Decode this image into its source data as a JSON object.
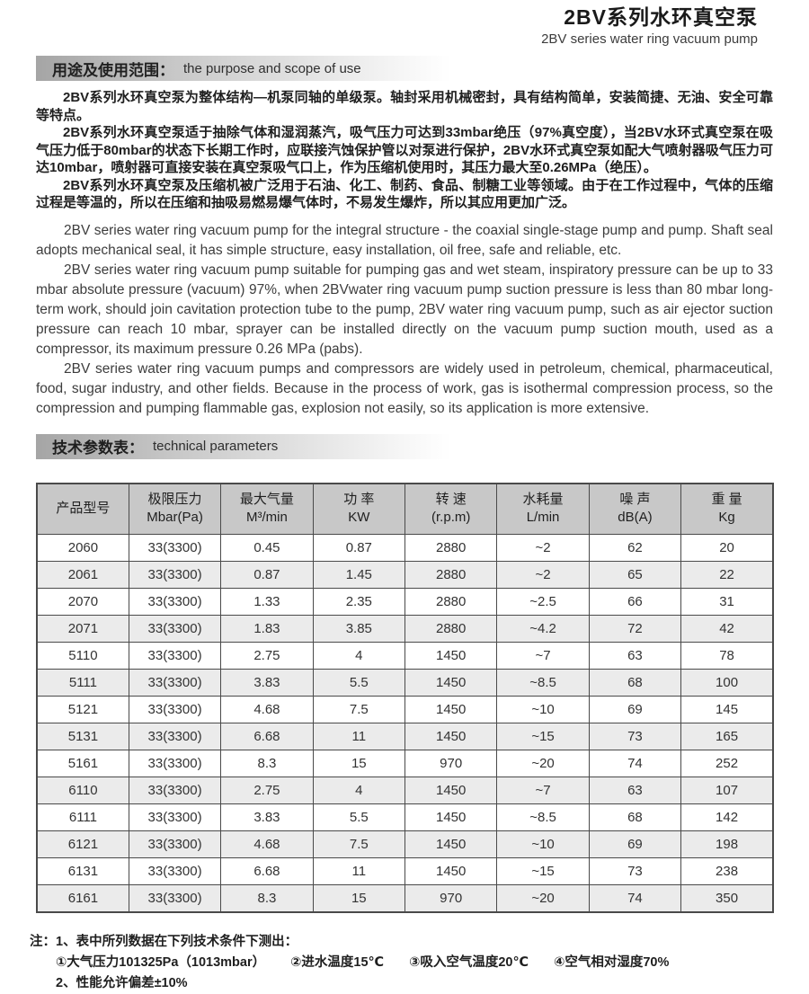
{
  "doc_header": {
    "title_zh": "2BV系列水环真空泵",
    "title_en": "2BV series water ring vacuum pump"
  },
  "section_purpose": {
    "title_zh": "用途及使用范围：",
    "title_en": "the purpose and scope of use",
    "paragraphs_zh": [
      "2BV系列水环真空泵为整体结构—机泵同轴的单级泵。轴封采用机械密封，具有结构简单，安装简捷、无油、安全可靠等特点。",
      "2BV系列水环真空泵适于抽除气体和湿润蒸汽，吸气压力可达到33mbar绝压（97%真空度），当2BV水环式真空泵在吸气压力低于80mbar的状态下长期工作时，应联接汽蚀保护管以对泵进行保护，2BV水环式真空泵如配大气喷射器吸气压力可达10mbar，喷射器可直接安装在真空泵吸气口上，作为压缩机使用时，其压力最大至0.26MPa（绝压）。",
      "2BV系列水环真空泵及压缩机被广泛用于石油、化工、制药、食品、制糖工业等领域。由于在工作过程中，气体的压缩过程是等温的，所以在压缩和抽吸易燃易爆气体时，不易发生爆炸，所以其应用更加广泛。"
    ],
    "paragraphs_en": [
      "2BV series water ring vacuum pump for the integral structure - the coaxial single-stage pump and pump. Shaft seal adopts mechanical seal, it has simple structure, easy installation, oil free, safe and reliable, etc.",
      "2BV series water ring vacuum pump suitable for pumping gas and wet steam, inspiratory pressure can be up to 33 mbar absolute pressure (vacuum) 97%, when 2BVwater ring vacuum pump suction pressure is less than 80 mbar long-term work, should join cavitation protection tube to the pump, 2BV water ring vacuum pump, such as air ejector suction pressure can reach 10 mbar, sprayer can be installed directly on the vacuum pump suction mouth, used as a compressor, its maximum pressure 0.26 MPa (pabs).",
      "2BV series water ring vacuum pumps and compressors are widely used in petroleum, chemical, pharmaceutical, food, sugar industry, and other fields. Because in the process of work, gas is isothermal compression process, so the compression and pumping flammable gas, explosion not easily, so its application is more extensive."
    ]
  },
  "section_params": {
    "title_zh": "技术参数表：",
    "title_en": "technical parameters"
  },
  "table": {
    "headers": [
      {
        "line1": "产品型号",
        "line2": ""
      },
      {
        "line1": "极限压力",
        "line2": "Mbar(Pa)"
      },
      {
        "line1": "最大气量",
        "line2": "M³/min"
      },
      {
        "line1": "功 率",
        "line2": "KW"
      },
      {
        "line1": "转 速",
        "line2": "(r.p.m)"
      },
      {
        "line1": "水耗量",
        "line2": "L/min"
      },
      {
        "line1": "噪 声",
        "line2": "dB(A)"
      },
      {
        "line1": "重 量",
        "line2": "Kg"
      }
    ],
    "rows": [
      [
        "2060",
        "33(3300)",
        "0.45",
        "0.87",
        "2880",
        "~2",
        "62",
        "20"
      ],
      [
        "2061",
        "33(3300)",
        "0.87",
        "1.45",
        "2880",
        "~2",
        "65",
        "22"
      ],
      [
        "2070",
        "33(3300)",
        "1.33",
        "2.35",
        "2880",
        "~2.5",
        "66",
        "31"
      ],
      [
        "2071",
        "33(3300)",
        "1.83",
        "3.85",
        "2880",
        "~4.2",
        "72",
        "42"
      ],
      [
        "5110",
        "33(3300)",
        "2.75",
        "4",
        "1450",
        "~7",
        "63",
        "78"
      ],
      [
        "5111",
        "33(3300)",
        "3.83",
        "5.5",
        "1450",
        "~8.5",
        "68",
        "100"
      ],
      [
        "5121",
        "33(3300)",
        "4.68",
        "7.5",
        "1450",
        "~10",
        "69",
        "145"
      ],
      [
        "5131",
        "33(3300)",
        "6.68",
        "11",
        "1450",
        "~15",
        "73",
        "165"
      ],
      [
        "5161",
        "33(3300)",
        "8.3",
        "15",
        "970",
        "~20",
        "74",
        "252"
      ],
      [
        "6110",
        "33(3300)",
        "2.75",
        "4",
        "1450",
        "~7",
        "63",
        "107"
      ],
      [
        "6111",
        "33(3300)",
        "3.83",
        "5.5",
        "1450",
        "~8.5",
        "68",
        "142"
      ],
      [
        "6121",
        "33(3300)",
        "4.68",
        "7.5",
        "1450",
        "~10",
        "69",
        "198"
      ],
      [
        "6131",
        "33(3300)",
        "6.68",
        "11",
        "1450",
        "~15",
        "73",
        "238"
      ],
      [
        "6161",
        "33(3300)",
        "8.3",
        "15",
        "970",
        "~20",
        "74",
        "350"
      ]
    ]
  },
  "notes": {
    "label": "注：",
    "line1": "1、表中所列数据在下列技术条件下测出：",
    "conditions": [
      "①大气压力101325Pa（1013mbar）",
      "②进水温度15℃",
      "③吸入空气温度20℃",
      "④空气相对湿度70%"
    ],
    "line3": "2、性能允许偏差±10%"
  }
}
